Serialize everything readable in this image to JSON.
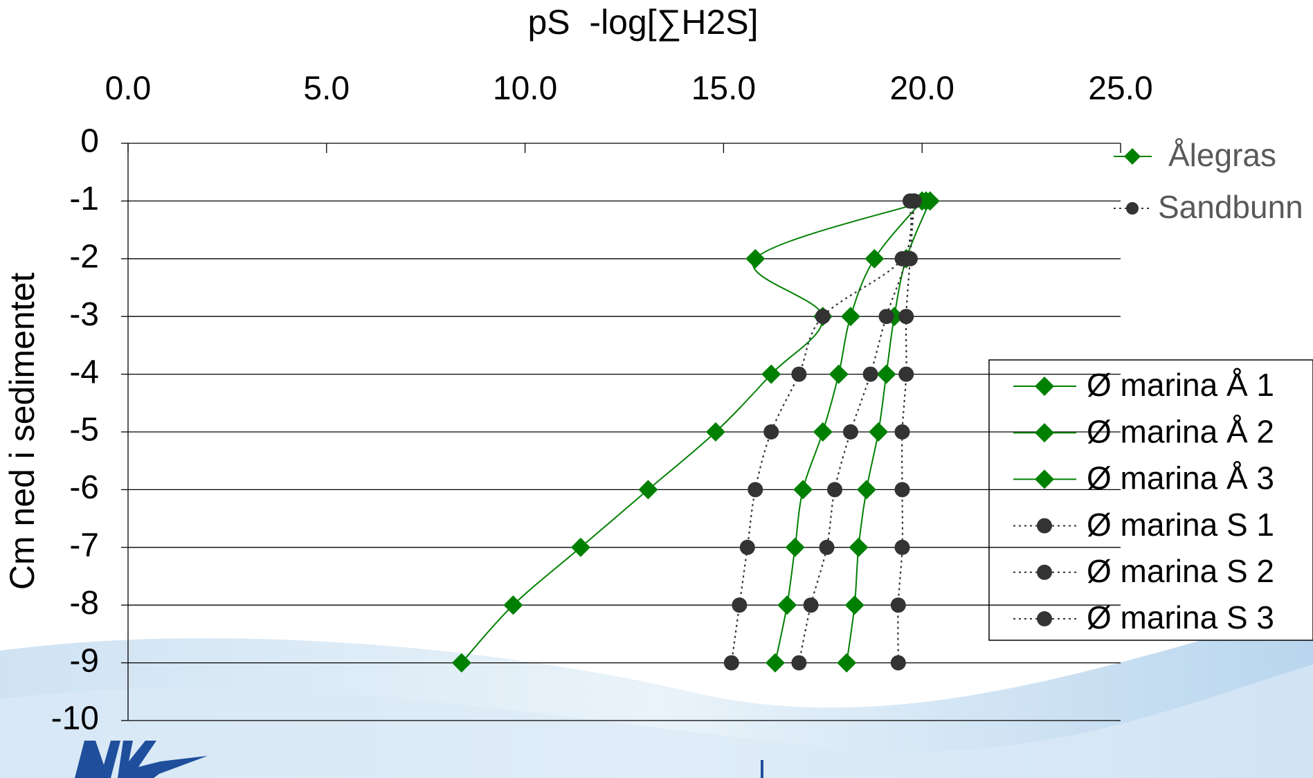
{
  "chart_data": {
    "type": "line",
    "title": "pS  -log[∑H2S]",
    "y_label": "Cm ned i sedimentet",
    "y": [
      -1,
      -2,
      -3,
      -4,
      -5,
      -6,
      -7,
      -8,
      -9
    ],
    "xlim": [
      0,
      25
    ],
    "xticks": [
      {
        "value": 0,
        "label": "0.0"
      },
      {
        "value": 5,
        "label": "5.0"
      },
      {
        "value": 10,
        "label": "10.0"
      },
      {
        "value": 15,
        "label": "15.0"
      },
      {
        "value": 20,
        "label": "20.0"
      },
      {
        "value": 25,
        "label": "25.0"
      }
    ],
    "ylim": [
      -10,
      0
    ],
    "yticks": [
      0,
      -1,
      -2,
      -3,
      -4,
      -5,
      -6,
      -7,
      -8,
      -9,
      -10
    ],
    "grid": true,
    "group_legend": [
      {
        "name": "Ålegras",
        "color": "#008000",
        "marker": "diamond",
        "dashed": false
      },
      {
        "name": "Sandbunn",
        "color": "#333333",
        "marker": "circle",
        "dashed": true
      }
    ],
    "series": [
      {
        "name": "Ø marina Å 1",
        "color": "#008000",
        "marker": "diamond",
        "dashed": false,
        "values": [
          20.1,
          15.8,
          17.5,
          16.2,
          14.8,
          13.1,
          11.4,
          9.7,
          8.4
        ]
      },
      {
        "name": "Ø marina Å 2",
        "color": "#008000",
        "marker": "diamond",
        "dashed": false,
        "values": [
          20.0,
          18.8,
          18.2,
          17.9,
          17.5,
          17.0,
          16.8,
          16.6,
          16.3
        ]
      },
      {
        "name": "Ø marina Å 3",
        "color": "#008000",
        "marker": "diamond",
        "dashed": false,
        "values": [
          20.2,
          19.6,
          19.3,
          19.1,
          18.9,
          18.6,
          18.4,
          18.3,
          18.1
        ]
      },
      {
        "name": "Ø marina S 1",
        "color": "#333333",
        "marker": "circle",
        "dashed": true,
        "values": [
          19.7,
          19.5,
          17.5,
          16.9,
          16.2,
          15.8,
          15.6,
          15.4,
          15.2
        ]
      },
      {
        "name": "Ø marina S 2",
        "color": "#333333",
        "marker": "circle",
        "dashed": true,
        "values": [
          19.8,
          19.6,
          19.1,
          18.7,
          18.2,
          17.8,
          17.6,
          17.2,
          16.9
        ]
      },
      {
        "name": "Ø marina S 3",
        "color": "#333333",
        "marker": "circle",
        "dashed": true,
        "values": [
          19.8,
          19.7,
          19.6,
          19.6,
          19.5,
          19.5,
          19.5,
          19.4,
          19.4
        ]
      }
    ]
  }
}
